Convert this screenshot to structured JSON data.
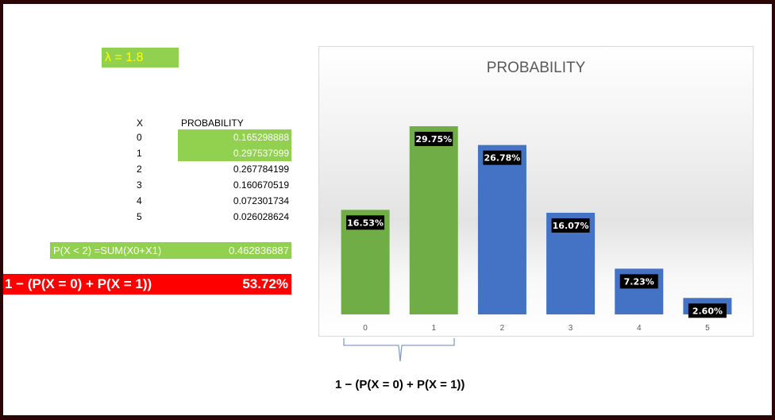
{
  "lambda_label": "λ = 1.8",
  "table": {
    "x_header": "X",
    "p_header": "PROBABILITY",
    "rows": [
      {
        "x": "0",
        "p": "0.165298888"
      },
      {
        "x": "1",
        "p": "0.297537999"
      },
      {
        "x": "2",
        "p": "0.267784199"
      },
      {
        "x": "3",
        "p": "0.160670519"
      },
      {
        "x": "4",
        "p": "0.072301734"
      },
      {
        "x": "5",
        "p": "0.026028624"
      }
    ]
  },
  "sum_row": {
    "label": "P(X < 2) =SUM(X0+X1)",
    "value": "0.462836887"
  },
  "complement_row": {
    "label": "1 − (P(X = 0) + P(X = 1))",
    "value": "53.72%"
  },
  "brace_label": "1 − (P(X = 0) + P(X = 1))",
  "colors": {
    "green": "#70ad47",
    "blue": "#4472c4",
    "highlight": "#92d050",
    "red": "#ff0000",
    "lambda_text": "#ffff00"
  },
  "chart_data": {
    "type": "bar",
    "title": "PROBABILITY",
    "categories": [
      "0",
      "1",
      "2",
      "3",
      "4",
      "5"
    ],
    "values": [
      16.53,
      29.75,
      26.78,
      16.07,
      7.23,
      2.6
    ],
    "data_labels": [
      "16.53%",
      "29.75%",
      "26.78%",
      "16.07%",
      "7.23%",
      "2.60%"
    ],
    "bar_colors": [
      "#70ad47",
      "#70ad47",
      "#4472c4",
      "#4472c4",
      "#4472c4",
      "#4472c4"
    ],
    "ylim": [
      0,
      30
    ],
    "grid": false,
    "legend": "none"
  }
}
